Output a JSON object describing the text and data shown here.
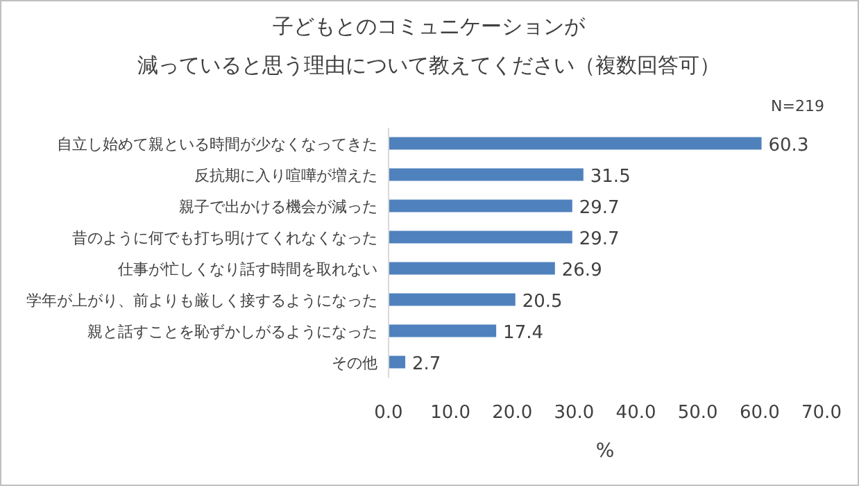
{
  "chart_data": {
    "type": "bar",
    "orientation": "horizontal",
    "title": "子どもとのコミュニケーションが",
    "subtitle": "減っていると思う理由について教えてください（複数回答可）",
    "xlabel": "%",
    "annotations": [
      "N=219"
    ],
    "categories": [
      "自立し始めて親といる時間が少なくなってきた",
      "反抗期に入り喧嘩が増えた",
      "親子で出かける機会が減った",
      "昔のように何でも打ち明けてくれなくなった",
      "仕事が忙しくなり話す時間を取れない",
      "学年が上がり、前よりも厳しく接するようになった",
      "親と話すことを恥ずかしがるようになった",
      "その他"
    ],
    "values": [
      60.3,
      31.5,
      29.7,
      29.7,
      26.9,
      20.5,
      17.4,
      2.7
    ],
    "value_labels": [
      "60.3",
      "31.5",
      "29.7",
      "29.7",
      "26.9",
      "20.5",
      "17.4",
      "2.7"
    ],
    "color": "#4f81bd",
    "xlim": [
      0,
      70
    ],
    "xticks": [
      {
        "value": 0,
        "label": "0.0"
      },
      {
        "value": 10,
        "label": "10.0"
      },
      {
        "value": 20,
        "label": "20.0"
      },
      {
        "value": 30,
        "label": "30.0"
      },
      {
        "value": 40,
        "label": "40.0"
      },
      {
        "value": 50,
        "label": "50.0"
      },
      {
        "value": 60,
        "label": "60.0"
      },
      {
        "value": 70,
        "label": "70.0"
      }
    ],
    "marker": "none"
  }
}
